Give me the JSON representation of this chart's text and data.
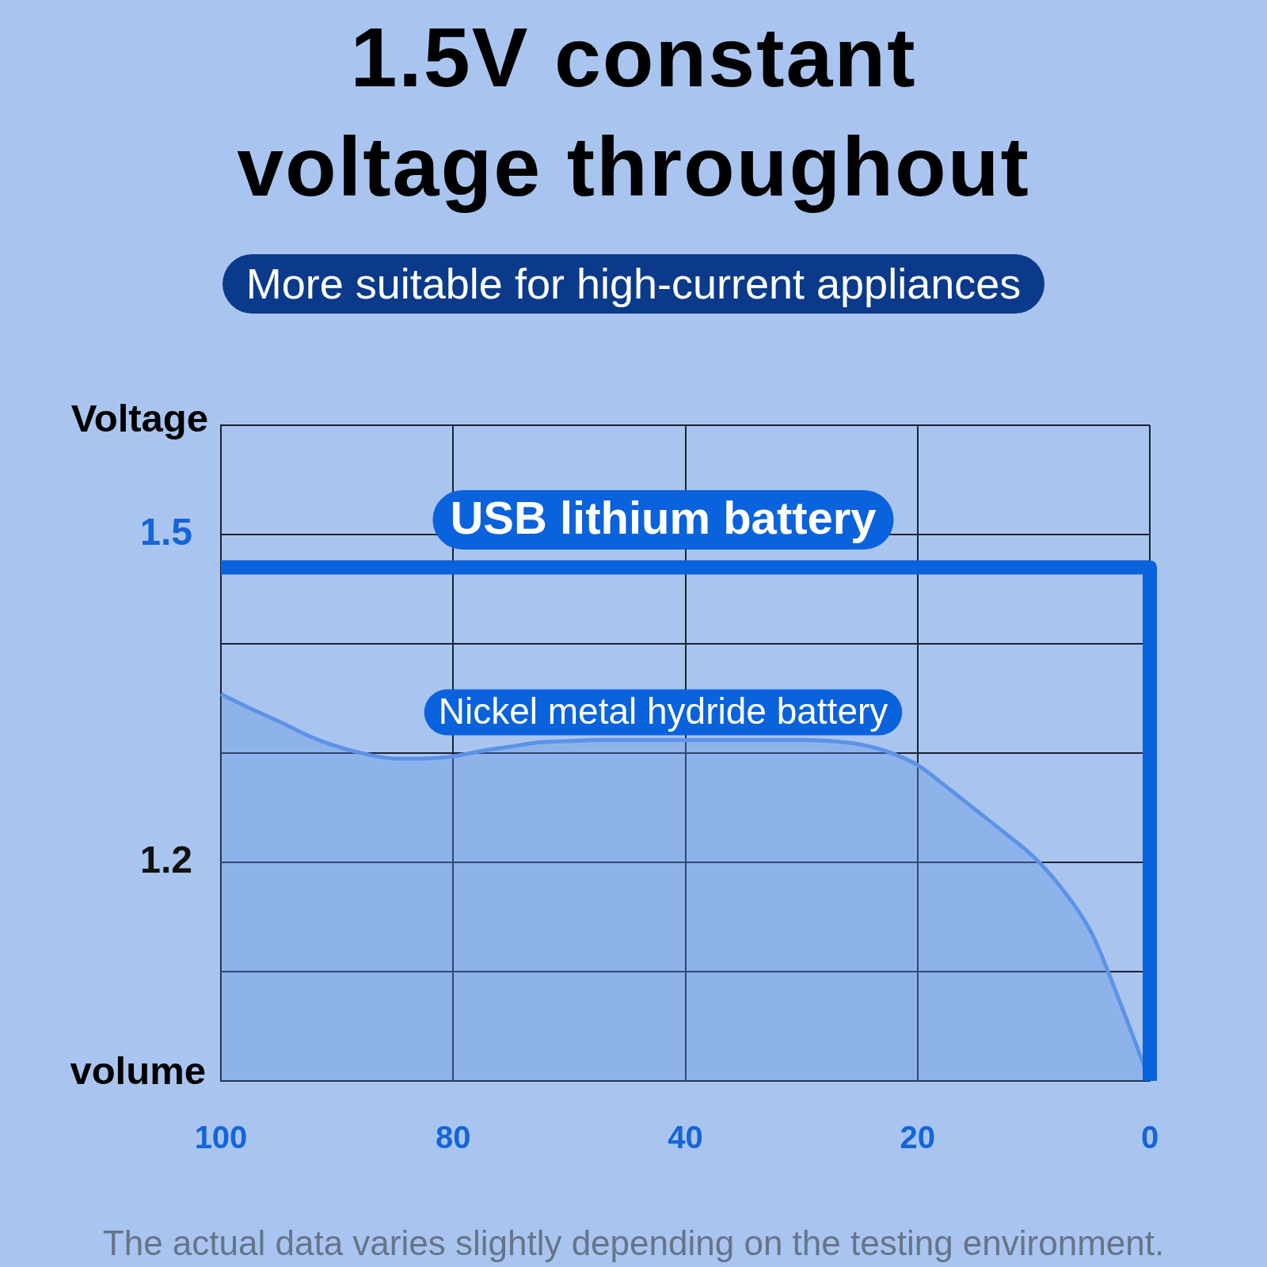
{
  "chart_data": {
    "type": "line",
    "title": "1.5V constant voltage throughout",
    "subtitle": "More suitable for high-current appliances",
    "xlabel": "volume",
    "ylabel": "Voltage",
    "categories": [
      "100",
      null,
      null,
      null,
      null,
      null,
      null,
      null,
      "80",
      null,
      null,
      null,
      null,
      null,
      null,
      null,
      "40",
      null,
      null,
      null,
      null,
      null,
      null,
      null,
      "20",
      null,
      null,
      null,
      null,
      null,
      null,
      null,
      "0"
    ],
    "series": [
      {
        "name": "USB lithium battery",
        "type": "step",
        "color": "#0a62dc",
        "values": [
          1.47,
          1.47,
          1.47,
          1.47,
          1.47,
          1.47,
          1.47,
          1.47,
          1.47,
          1.47,
          1.47,
          1.47,
          1.47,
          1.47,
          1.47,
          1.47,
          1.47,
          1.47,
          1.47,
          1.47,
          1.47,
          1.47,
          1.47,
          1.47,
          1.47,
          1.47,
          1.47,
          1.47,
          1.47,
          1.47,
          1.47,
          1.47,
          1.0
        ]
      },
      {
        "name": "Nickel metal hydride battery",
        "type": "area",
        "color": "#5d93e6",
        "values": [
          1.354,
          1.341,
          1.329,
          1.316,
          1.306,
          1.299,
          1.295,
          1.295,
          1.297,
          1.302,
          1.306,
          1.31,
          1.311,
          1.312,
          1.312,
          1.312,
          1.312,
          1.312,
          1.312,
          1.312,
          1.312,
          1.311,
          1.308,
          1.301,
          1.289,
          1.269,
          1.248,
          1.227,
          1.205,
          1.175,
          1.135,
          1.07,
          1.0
        ]
      }
    ],
    "ylim": [
      1.0,
      1.6
    ],
    "yticks": [
      {
        "value": 1.0,
        "label": null
      },
      {
        "value": 1.1,
        "label": null
      },
      1.2,
      {
        "value": 1.3,
        "label": null
      },
      {
        "value": 1.4,
        "label": null
      },
      1.5,
      {
        "value": 1.6,
        "label": null
      }
    ],
    "grid": true,
    "annotations": [
      "The actual data varies slightly depending on the testing environment."
    ]
  }
}
